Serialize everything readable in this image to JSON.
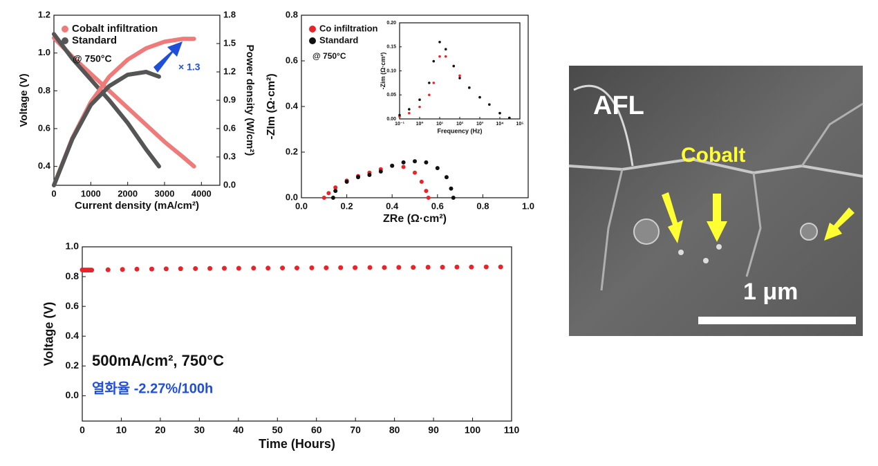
{
  "chart_data": [
    {
      "type": "line",
      "xlabel": "Current density (mA/cm²)",
      "ylabel": "Voltage (V)",
      "y2label": "Power density (W/cm²)",
      "xlim": [
        0,
        4500
      ],
      "xticks": [
        0,
        1000,
        2000,
        3000,
        4000
      ],
      "ylim": [
        0.3,
        1.2
      ],
      "yticks": [
        0.4,
        0.6,
        0.8,
        {
          "value": 1,
          "label": "1.0"
        },
        1.2
      ],
      "y2lim": [
        0,
        1.8
      ],
      "y2ticks": [
        {
          "value": 0,
          "label": "0.0"
        },
        0.3,
        0.6,
        0.9,
        1.2,
        1.5,
        1.8
      ],
      "legend": "upper left",
      "series": [
        {
          "name": "Cobalt infiltration",
          "color": "#ef7a7a",
          "x": [
            0,
            500,
            1000,
            1500,
            2000,
            2500,
            3000,
            3500,
            3800
          ],
          "values": [
            1.08,
            0.98,
            0.89,
            0.8,
            0.71,
            0.62,
            0.53,
            0.45,
            0.4
          ]
        },
        {
          "name": "Standard",
          "color": "#555555",
          "x": [
            0,
            500,
            1000,
            1500,
            2000,
            2500,
            2850
          ],
          "values": [
            1.1,
            0.97,
            0.86,
            0.75,
            0.63,
            0.49,
            0.4
          ]
        },
        {
          "name": "Cobalt infiltration",
          "color": "#ef7a7a",
          "axis": "y2",
          "x": [
            0,
            500,
            1000,
            1500,
            2000,
            2500,
            3000,
            3500,
            3800
          ],
          "values": [
            0,
            0.5,
            0.88,
            1.15,
            1.33,
            1.45,
            1.52,
            1.55,
            1.55
          ]
        },
        {
          "name": "Standard",
          "color": "#555555",
          "axis": "y2",
          "x": [
            0,
            500,
            1000,
            1500,
            2000,
            2500,
            2850
          ],
          "values": [
            0,
            0.49,
            0.85,
            1.05,
            1.17,
            1.2,
            1.15
          ]
        }
      ],
      "annotations": [
        {
          "text": "@ 750°C",
          "color": "#111111"
        },
        {
          "text": "× 1.3",
          "color": "#1f4fd8"
        }
      ]
    },
    {
      "type": "scatter",
      "xlabel": "ZRe (Ω·cm²)",
      "ylabel": "-ZIm (Ω·cm²)",
      "xlim": [
        0,
        1
      ],
      "xticks": [
        {
          "value": 0,
          "label": "0.0"
        },
        0.2,
        0.4,
        0.6,
        0.8,
        {
          "value": 1,
          "label": "1.0"
        }
      ],
      "ylim": [
        0,
        0.8
      ],
      "yticks": [
        {
          "value": 0,
          "label": "0.0"
        },
        0.2,
        0.4,
        0.6,
        0.8
      ],
      "legend": "upper left",
      "series": [
        {
          "name": "Co infiltration",
          "color": "#e8242b",
          "x": [
            0.1,
            0.12,
            0.15,
            0.2,
            0.25,
            0.3,
            0.35,
            0.4,
            0.45,
            0.5,
            0.53,
            0.55,
            0.56
          ],
          "values": [
            0,
            0.02,
            0.045,
            0.075,
            0.095,
            0.11,
            0.125,
            0.14,
            0.135,
            0.11,
            0.07,
            0.03,
            0
          ]
        },
        {
          "name": "Standard",
          "color": "#111111",
          "x": [
            0.14,
            0.15,
            0.2,
            0.25,
            0.3,
            0.35,
            0.4,
            0.45,
            0.5,
            0.55,
            0.6,
            0.64,
            0.66,
            0.67
          ],
          "values": [
            0,
            0.03,
            0.07,
            0.09,
            0.1,
            0.115,
            0.14,
            0.155,
            0.16,
            0.155,
            0.13,
            0.09,
            0.04,
            0
          ]
        }
      ],
      "annotations": [
        {
          "text": "@ 750°C",
          "color": "#111111"
        }
      ]
    },
    {
      "type": "scatter",
      "xscale": "log",
      "xlabel": "Frequency (Hz)",
      "ylabel": "-Zim (Ω·cm²)",
      "xlim": [
        0.1,
        100000
      ],
      "xticks": [
        {
          "value": 0.1,
          "label": "10⁻¹"
        },
        {
          "value": 1,
          "label": "10⁰"
        },
        {
          "value": 10,
          "label": "10¹"
        },
        {
          "value": 100,
          "label": "10²"
        },
        {
          "value": 1000,
          "label": "10³"
        },
        {
          "value": 10000,
          "label": "10⁴"
        },
        {
          "value": 100000,
          "label": "10⁵"
        }
      ],
      "ylim": [
        0,
        0.2
      ],
      "yticks": [
        {
          "value": 0,
          "label": "0.00"
        },
        0.05,
        {
          "value": 0.1,
          "label": "0.10"
        },
        0.15,
        {
          "value": 0.2,
          "label": "0.20"
        }
      ],
      "series": [
        {
          "color": "#e8242b",
          "x": [
            0.1,
            0.3,
            1,
            3,
            5,
            10,
            20,
            50,
            100,
            300,
            1000,
            3000,
            10000,
            30000
          ],
          "values": [
            0.005,
            0.012,
            0.025,
            0.05,
            0.075,
            0.13,
            0.13,
            0.11,
            0.09,
            0.065,
            0.045,
            0.03,
            0.012,
            0.002
          ]
        },
        {
          "color": "#111111",
          "x": [
            0.1,
            0.3,
            1,
            3,
            5,
            10,
            20,
            50,
            100,
            300,
            1000,
            3000,
            10000,
            30000
          ],
          "values": [
            0.008,
            0.02,
            0.04,
            0.075,
            0.12,
            0.16,
            0.145,
            0.11,
            0.085,
            0.065,
            0.045,
            0.03,
            0.012,
            0.002
          ]
        }
      ]
    },
    {
      "type": "scatter",
      "xlabel": "Time (Hours)",
      "ylabel": "Voltage (V)",
      "xlim": [
        0,
        110
      ],
      "xticks": [
        0,
        10,
        20,
        30,
        40,
        50,
        60,
        70,
        80,
        90,
        100,
        110
      ],
      "ylim": [
        -0.17,
        1
      ],
      "yticks": [
        {
          "value": 0,
          "label": "0.0"
        },
        0.2,
        0.4,
        0.6,
        0.8,
        {
          "value": 1,
          "label": "1.0"
        }
      ],
      "series": [
        {
          "color": "#e8242b",
          "x": [
            0,
            0.3,
            0.6,
            0.9,
            1.2,
            1.5,
            1.8,
            2.1,
            2.4,
            6.6,
            10.3,
            14,
            17.8,
            21.5,
            25.2,
            29,
            32.7,
            36.4,
            40.1,
            43.9,
            47.6,
            51.3,
            55,
            58.8,
            62.5,
            66.2,
            69.9,
            73.7,
            77.4,
            81.1,
            84.8,
            88.6,
            92.3,
            96,
            99.7,
            103.5,
            107.2
          ],
          "values": [
            0.845,
            0.844,
            0.844,
            0.844,
            0.844,
            0.844,
            0.844,
            0.844,
            0.844,
            0.846,
            0.848,
            0.85,
            0.851,
            0.852,
            0.853,
            0.854,
            0.855,
            0.856,
            0.856,
            0.857,
            0.857,
            0.858,
            0.858,
            0.859,
            0.859,
            0.86,
            0.86,
            0.861,
            0.861,
            0.862,
            0.862,
            0.863,
            0.863,
            0.864,
            0.864,
            0.865,
            0.865
          ]
        }
      ],
      "annotations": [
        {
          "text": "500mA/cm², 750°C",
          "color": "#111111"
        },
        {
          "text": "열화율 -2.27%/100h",
          "color": "#1f4fd8"
        }
      ]
    }
  ],
  "image": {
    "labels": [
      "AFL",
      "Cobalt",
      "1 μm"
    ]
  }
}
